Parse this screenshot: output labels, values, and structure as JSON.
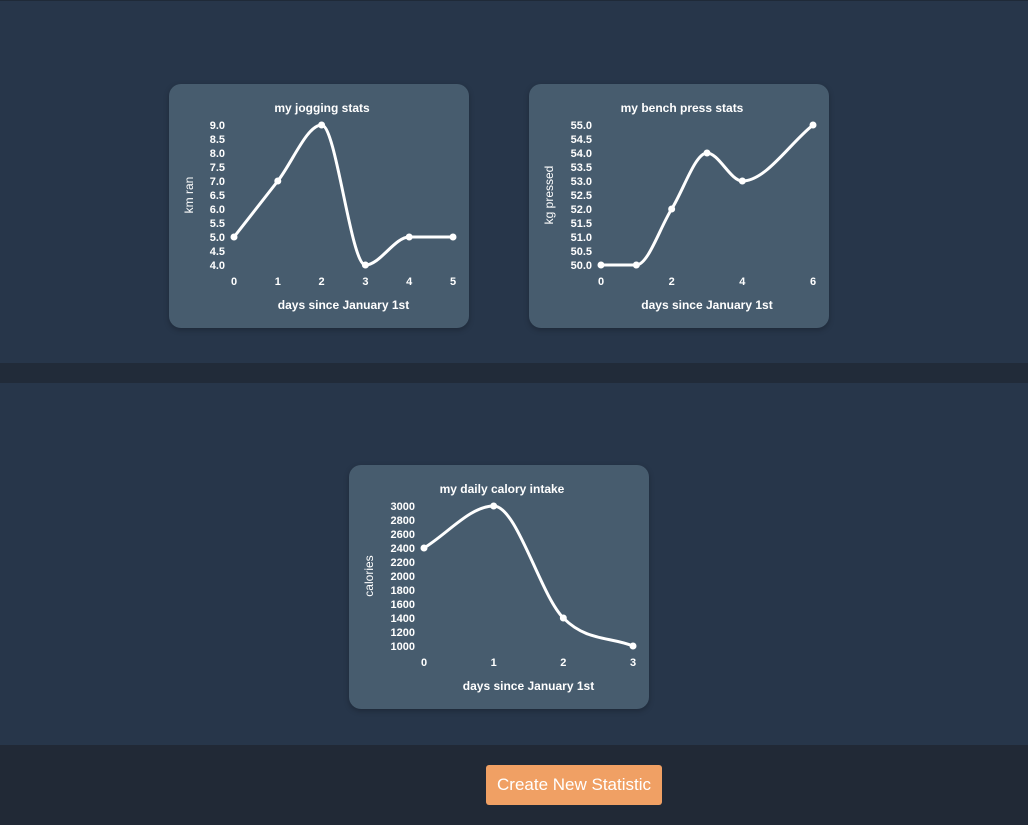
{
  "footer": {
    "create_button_label": "Create New Statistic"
  },
  "line_color": "#ffffff",
  "chart_data": [
    {
      "type": "line",
      "title": "my jogging stats",
      "xlabel": "days since January 1st",
      "ylabel": "km ran",
      "x": [
        0,
        1,
        2,
        3,
        4,
        5
      ],
      "series": [
        {
          "values": [
            5.0,
            7.0,
            9.0,
            4.0,
            5.0,
            5.0
          ]
        }
      ],
      "xticks": [
        "0",
        "1",
        "2",
        "3",
        "4",
        "5"
      ],
      "yticks": [
        "4.0",
        "4.5",
        "5.0",
        "5.5",
        "6.0",
        "6.5",
        "7.0",
        "7.5",
        "8.0",
        "8.5",
        "9.0"
      ],
      "xlim": [
        0,
        5
      ],
      "ylim": [
        4.0,
        9.0
      ],
      "grid": false,
      "smooth": true
    },
    {
      "type": "line",
      "title": "my bench press stats",
      "xlabel": "days since January 1st",
      "ylabel": "kg pressed",
      "x": [
        0,
        1,
        2,
        3,
        4,
        6
      ],
      "series": [
        {
          "values": [
            50.0,
            50.0,
            52.0,
            54.0,
            53.0,
            55.0
          ]
        }
      ],
      "xticks": [
        "0",
        "2",
        "4",
        "6"
      ],
      "yticks": [
        "50.0",
        "50.5",
        "51.0",
        "51.5",
        "52.0",
        "52.5",
        "53.0",
        "53.5",
        "54.0",
        "54.5",
        "55.0"
      ],
      "xlim": [
        0,
        6
      ],
      "ylim": [
        50.0,
        55.0
      ],
      "grid": false,
      "smooth": true
    },
    {
      "type": "line",
      "title": "my daily calory intake",
      "xlabel": "days since January 1st",
      "ylabel": "calories",
      "x": [
        0,
        1,
        2,
        3
      ],
      "series": [
        {
          "values": [
            2400,
            3000,
            1400,
            1000
          ]
        }
      ],
      "xticks": [
        "0",
        "1",
        "2",
        "3"
      ],
      "yticks": [
        "1000",
        "1200",
        "1400",
        "1600",
        "1800",
        "2000",
        "2200",
        "2400",
        "2600",
        "2800",
        "3000"
      ],
      "xlim": [
        0,
        3
      ],
      "ylim": [
        1000,
        3000
      ],
      "grid": false,
      "smooth": true
    }
  ]
}
